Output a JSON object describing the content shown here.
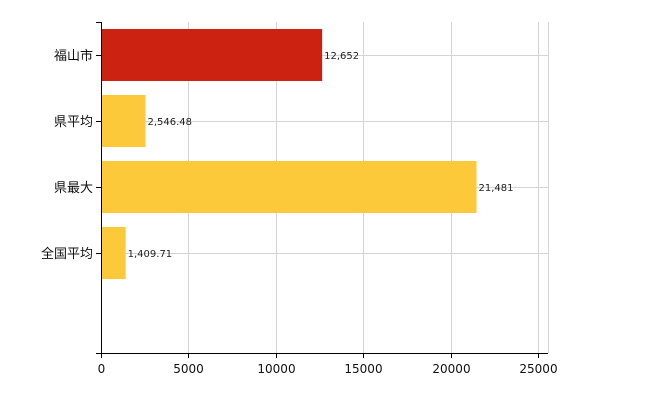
{
  "chart_data": {
    "type": "bar",
    "orientation": "horizontal",
    "categories": [
      "福山市",
      "県平均",
      "県最大",
      "全国平均"
    ],
    "values": [
      12652,
      2546.48,
      21481,
      1409.71
    ],
    "value_labels": [
      "12,652",
      "2,546.48",
      "21,481",
      "1,409.71"
    ],
    "bar_colors": [
      "#cc2211",
      "#fcc93a",
      "#fcc93a",
      "#fcc93a"
    ],
    "xlim": [
      0,
      25000
    ],
    "xticks": [
      0,
      5000,
      10000,
      15000,
      20000,
      25000
    ],
    "xtick_labels": [
      "0",
      "5000",
      "10000",
      "15000",
      "20000",
      "25000"
    ],
    "grid": true,
    "legend": "none"
  }
}
